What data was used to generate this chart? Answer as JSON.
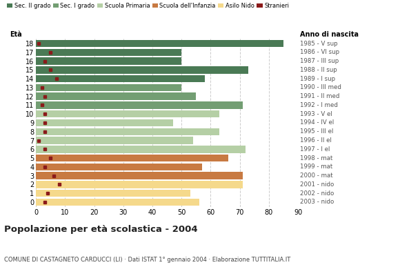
{
  "ages": [
    18,
    17,
    16,
    15,
    14,
    13,
    12,
    11,
    10,
    9,
    8,
    7,
    6,
    5,
    4,
    3,
    2,
    1,
    0
  ],
  "bar_values": [
    85,
    50,
    50,
    73,
    58,
    50,
    55,
    71,
    63,
    47,
    63,
    54,
    72,
    66,
    57,
    71,
    71,
    53,
    56
  ],
  "stranieri_values": [
    1,
    5,
    3,
    5,
    7,
    2,
    3,
    2,
    3,
    3,
    3,
    1,
    3,
    5,
    3,
    6,
    8,
    4,
    3
  ],
  "anno_labels": [
    "1985 - V sup",
    "1986 - VI sup",
    "1987 - III sup",
    "1988 - II sup",
    "1989 - I sup",
    "1990 - III med",
    "1991 - II med",
    "1992 - I med",
    "1993 - V el",
    "1994 - IV el",
    "1995 - III el",
    "1996 - II el",
    "1997 - I el",
    "1998 - mat",
    "1999 - mat",
    "2000 - mat",
    "2001 - nido",
    "2002 - nido",
    "2003 - nido"
  ],
  "colors": {
    "sec_II": "#4a7a55",
    "sec_I": "#739e73",
    "primaria": "#b5cfa5",
    "infanzia": "#c87a42",
    "nido": "#f5d98b",
    "stranieri": "#8b1a1a"
  },
  "title": "Popolazione per età scolastica - 2004",
  "subtitle": "COMUNE DI CASTAGNETO CARDUCCI (LI) · Dati ISTAT 1° gennaio 2004 · Elaborazione TUTTITALIA.IT",
  "xlabel_eta": "Età",
  "xlabel_anno": "Anno di nascita",
  "xlim": [
    0,
    90
  ],
  "xticks": [
    0,
    10,
    20,
    30,
    40,
    50,
    60,
    70,
    80,
    90
  ],
  "bg_color": "#ffffff"
}
